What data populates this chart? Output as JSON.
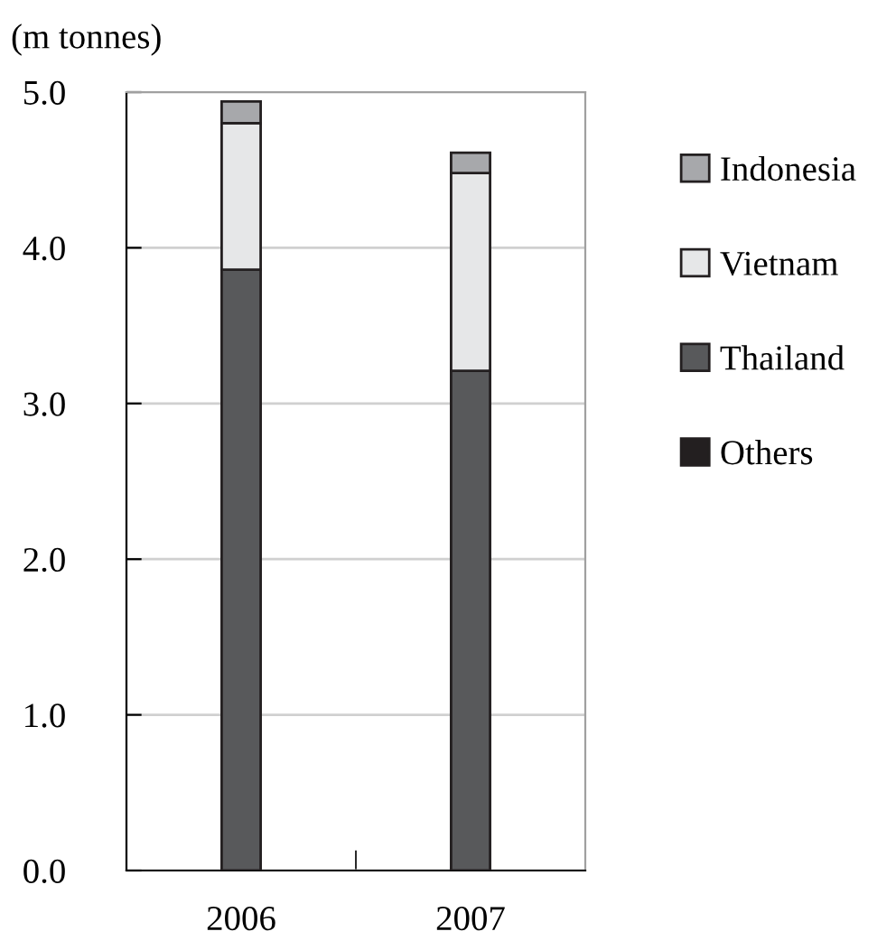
{
  "chart_data": {
    "type": "bar",
    "ylabel": "(m tonnes)",
    "categories": [
      "2006",
      "2007"
    ],
    "stacked": true,
    "series": [
      {
        "name": "Others",
        "color": "#231f20",
        "values": [
          0,
          0
        ]
      },
      {
        "name": "Thailand",
        "color": "#58595b",
        "values": [
          3.86,
          3.21
        ]
      },
      {
        "name": "Vietnam",
        "color": "#e6e7e8",
        "values": [
          0.94,
          1.27
        ]
      },
      {
        "name": "Indonesia",
        "color": "#a7a8ab",
        "values": [
          0.14,
          0.13
        ]
      }
    ],
    "ylim": [
      0,
      5
    ],
    "yticks": [
      {
        "value": 0,
        "label": "0.0"
      },
      {
        "value": 1,
        "label": "1.0"
      },
      {
        "value": 2,
        "label": "2.0"
      },
      {
        "value": 3,
        "label": "3.0"
      },
      {
        "value": 4,
        "label": "4.0"
      },
      {
        "value": 5,
        "label": "5.0"
      }
    ],
    "grid": "y",
    "legend": "right"
  }
}
